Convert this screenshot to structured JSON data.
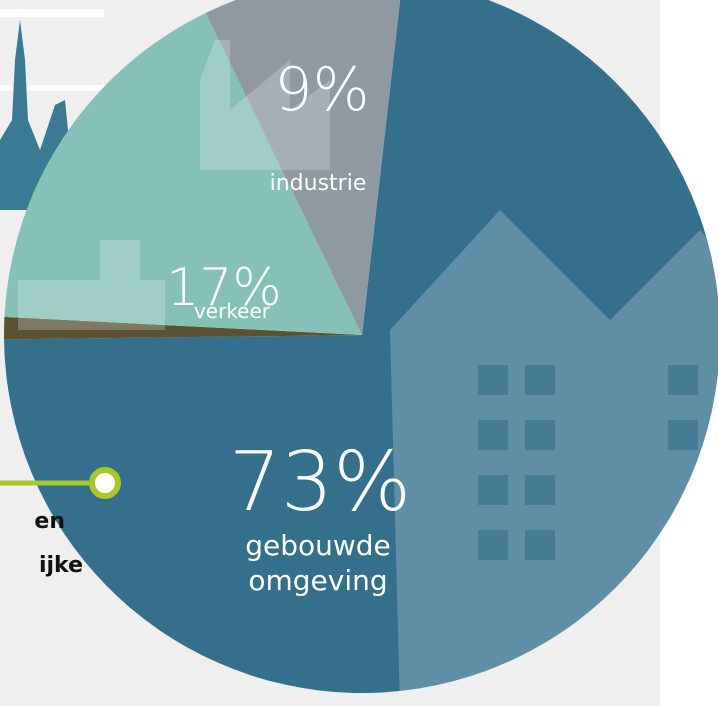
{
  "chart_data": {
    "type": "pie",
    "categories": [
      "gebouwde omgeving",
      null,
      "verkeer",
      "industrie"
    ],
    "values": [
      73,
      1,
      17,
      9
    ],
    "value_labels": [
      "73%",
      null,
      "17%",
      "9%"
    ],
    "colors": [
      "#346f8b",
      "#5b5236",
      "#86c1b8",
      "#8f99a2"
    ],
    "annotations": [
      "en",
      "ijke"
    ]
  }
}
